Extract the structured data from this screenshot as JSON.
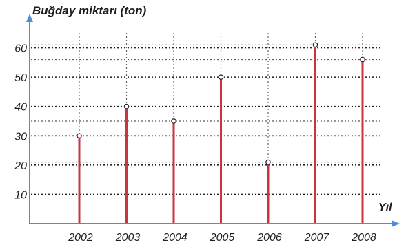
{
  "chart_data": {
    "type": "bar",
    "ylabel": "Buğday miktarı (ton)",
    "xlabel": "Yıl",
    "categories": [
      "2002",
      "2003",
      "2004",
      "2005",
      "2006",
      "2007",
      "2008"
    ],
    "values": [
      30,
      40,
      35,
      50,
      21,
      61,
      56
    ],
    "yticks": [
      10,
      20,
      30,
      40,
      50,
      60
    ],
    "ylim": [
      0,
      66
    ],
    "grid": true,
    "colors": {
      "bar": "#c8343f",
      "axis": "#4a8fd4",
      "grid": "#222222",
      "text": "#1e1e1e"
    }
  }
}
